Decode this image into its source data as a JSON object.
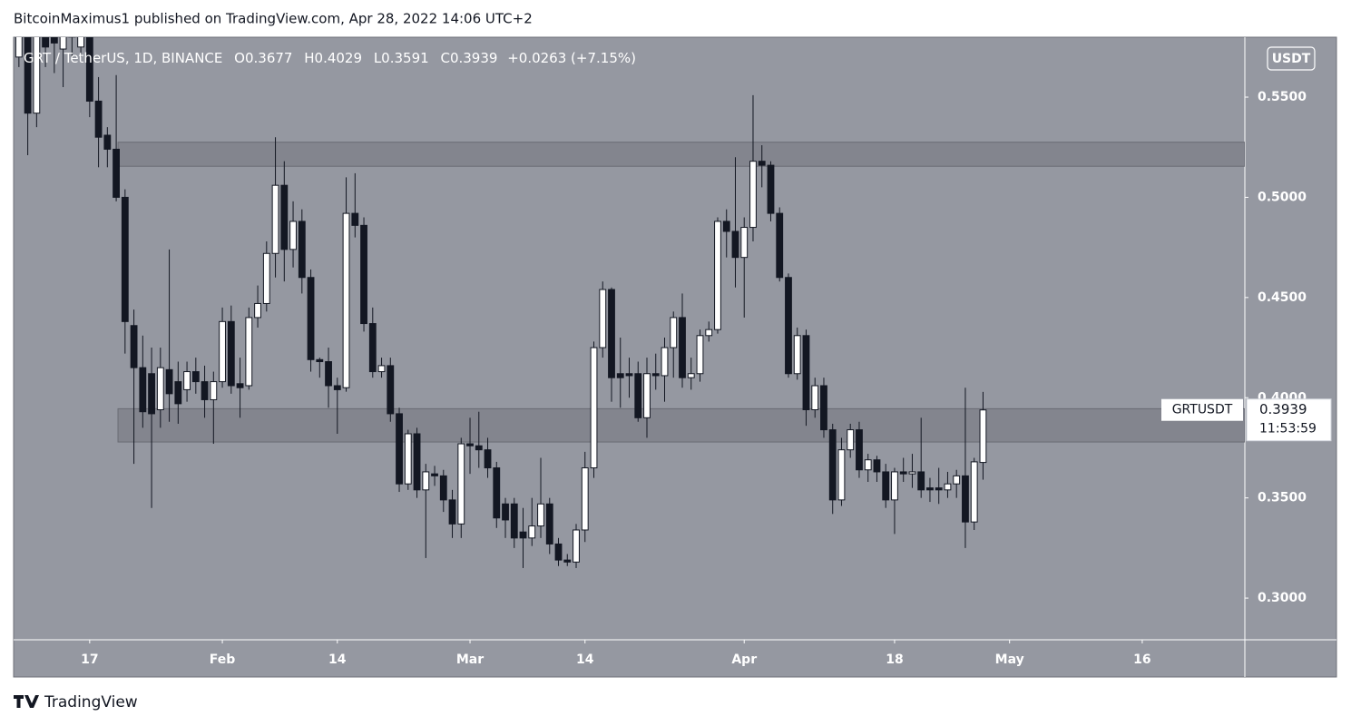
{
  "header": {
    "text": "BitcoinMaximus1 published on TradingView.com, Apr 28, 2022 14:06 UTC+2"
  },
  "footer": {
    "brand": "TradingView"
  },
  "chart_data": {
    "type": "candlestick",
    "symbol": "GRT / TetherUS, 1D, BINANCE",
    "ohlc_legend": {
      "o_label": "O",
      "open": 0.3677,
      "h_label": "H",
      "high": 0.4029,
      "l_label": "L",
      "low": 0.3591,
      "c_label": "C",
      "close": 0.3939,
      "change": "+0.0263 (+7.15%)"
    },
    "axis_unit": "USDT",
    "price_tag": {
      "name": "GRTUSDT",
      "value": 0.3939,
      "countdown": "11:53:59"
    },
    "up_color": "#ffffff",
    "down_color": "#131722",
    "wick_color": "#131722",
    "background": "#9598a1",
    "zone_color": "#7d7f88",
    "zones": [
      {
        "start": 20.2,
        "from": 0.5155,
        "to": 0.5275
      },
      {
        "start": 20.2,
        "from": 0.3779,
        "to": 0.3945
      }
    ],
    "xlim": [
      8.4,
      147.6
    ],
    "xticks": [
      {
        "value": 17,
        "label": "17"
      },
      {
        "value": 32,
        "label": "Feb"
      },
      {
        "value": 45,
        "label": "14"
      },
      {
        "value": 60,
        "label": "Mar"
      },
      {
        "value": 73,
        "label": "14"
      },
      {
        "value": 91,
        "label": "Apr"
      },
      {
        "value": 108,
        "label": "18"
      },
      {
        "value": 121,
        "label": "May"
      },
      {
        "value": 136,
        "label": "16"
      }
    ],
    "ylim": [
      0.2792,
      0.5799
    ],
    "yticks": [
      {
        "value": 0.3,
        "label": "0.3000"
      },
      {
        "value": 0.35,
        "label": "0.3500"
      },
      {
        "value": 0.4,
        "label": "0.4000"
      },
      {
        "value": 0.45,
        "label": "0.4500"
      },
      {
        "value": 0.5,
        "label": "0.5000"
      },
      {
        "value": 0.55,
        "label": "0.5500"
      }
    ],
    "x": [
      9,
      10,
      11,
      12,
      13,
      14,
      15,
      16,
      17,
      18,
      19,
      20,
      21,
      22,
      23,
      24,
      25,
      26,
      27,
      28,
      29,
      30,
      31,
      32,
      33,
      34,
      35,
      36,
      37,
      38,
      39,
      40,
      41,
      42,
      43,
      44,
      45,
      46,
      47,
      48,
      49,
      50,
      51,
      52,
      53,
      54,
      55,
      56,
      57,
      58,
      59,
      60,
      61,
      62,
      63,
      64,
      65,
      66,
      67,
      68,
      69,
      70,
      71,
      72,
      73,
      74,
      75,
      76,
      77,
      78,
      79,
      80,
      81,
      82,
      83,
      84,
      85,
      86,
      87,
      88,
      89,
      90,
      91,
      92,
      93,
      94,
      95,
      96,
      97,
      98,
      99,
      100,
      101,
      102,
      103,
      104,
      105,
      106,
      107,
      108,
      109,
      110,
      111,
      112,
      113,
      114,
      115,
      116,
      117,
      118
    ],
    "open": [
      0.57,
      0.585,
      0.542,
      0.59,
      0.585,
      0.574,
      0.59,
      0.575,
      0.585,
      0.548,
      0.531,
      0.524,
      0.5,
      0.436,
      0.415,
      0.412,
      0.394,
      0.414,
      0.408,
      0.404,
      0.413,
      0.408,
      0.399,
      0.408,
      0.438,
      0.407,
      0.406,
      0.44,
      0.447,
      0.472,
      0.506,
      0.474,
      0.488,
      0.46,
      0.419,
      0.418,
      0.406,
      0.405,
      0.492,
      0.486,
      0.437,
      0.413,
      0.416,
      0.392,
      0.357,
      0.382,
      0.354,
      0.362,
      0.361,
      0.349,
      0.337,
      0.377,
      0.376,
      0.374,
      0.365,
      0.347,
      0.347,
      0.333,
      0.33,
      0.336,
      0.347,
      0.327,
      0.319,
      0.318,
      0.334,
      0.365,
      0.425,
      0.454,
      0.412,
      0.412,
      0.412,
      0.39,
      0.412,
      0.411,
      0.425,
      0.44,
      0.41,
      0.412,
      0.431,
      0.434,
      0.488,
      0.483,
      0.47,
      0.485,
      0.518,
      0.516,
      0.492,
      0.46,
      0.412,
      0.431,
      0.394,
      0.406,
      0.384,
      0.349,
      0.374,
      0.384,
      0.364,
      0.369,
      0.363,
      0.349,
      0.363,
      0.362,
      0.363,
      0.355,
      0.355,
      0.354,
      0.357,
      0.361,
      0.338,
      0.3677
    ],
    "high": [
      0.6,
      0.6,
      0.59,
      0.6,
      0.595,
      0.6,
      0.6,
      0.6,
      0.595,
      0.56,
      0.535,
      0.561,
      0.504,
      0.444,
      0.431,
      0.425,
      0.425,
      0.474,
      0.418,
      0.418,
      0.42,
      0.416,
      0.413,
      0.445,
      0.446,
      0.42,
      0.445,
      0.456,
      0.478,
      0.53,
      0.518,
      0.498,
      0.494,
      0.464,
      0.42,
      0.425,
      0.41,
      0.51,
      0.512,
      0.49,
      0.445,
      0.42,
      0.42,
      0.395,
      0.384,
      0.385,
      0.367,
      0.366,
      0.364,
      0.354,
      0.38,
      0.39,
      0.393,
      0.38,
      0.368,
      0.35,
      0.35,
      0.345,
      0.35,
      0.37,
      0.35,
      0.33,
      0.322,
      0.337,
      0.373,
      0.428,
      0.458,
      0.455,
      0.43,
      0.42,
      0.418,
      0.42,
      0.422,
      0.43,
      0.443,
      0.452,
      0.42,
      0.434,
      0.438,
      0.49,
      0.494,
      0.52,
      0.49,
      0.551,
      0.526,
      0.518,
      0.495,
      0.462,
      0.435,
      0.434,
      0.41,
      0.41,
      0.387,
      0.38,
      0.387,
      0.388,
      0.372,
      0.371,
      0.367,
      0.365,
      0.37,
      0.372,
      0.39,
      0.36,
      0.365,
      0.363,
      0.364,
      0.405,
      0.37,
      0.4029
    ],
    "low": [
      0.565,
      0.521,
      0.535,
      0.565,
      0.562,
      0.555,
      0.57,
      0.57,
      0.54,
      0.515,
      0.515,
      0.498,
      0.422,
      0.367,
      0.385,
      0.345,
      0.385,
      0.388,
      0.387,
      0.398,
      0.402,
      0.39,
      0.377,
      0.405,
      0.402,
      0.39,
      0.404,
      0.435,
      0.443,
      0.46,
      0.458,
      0.465,
      0.452,
      0.413,
      0.41,
      0.395,
      0.382,
      0.403,
      0.48,
      0.433,
      0.41,
      0.41,
      0.388,
      0.353,
      0.354,
      0.35,
      0.32,
      0.356,
      0.343,
      0.33,
      0.33,
      0.362,
      0.365,
      0.36,
      0.335,
      0.33,
      0.325,
      0.315,
      0.326,
      0.33,
      0.322,
      0.316,
      0.316,
      0.315,
      0.328,
      0.36,
      0.42,
      0.398,
      0.395,
      0.4,
      0.388,
      0.38,
      0.404,
      0.398,
      0.41,
      0.405,
      0.404,
      0.408,
      0.428,
      0.432,
      0.47,
      0.455,
      0.44,
      0.478,
      0.505,
      0.488,
      0.458,
      0.41,
      0.409,
      0.386,
      0.39,
      0.38,
      0.342,
      0.346,
      0.37,
      0.36,
      0.358,
      0.358,
      0.345,
      0.332,
      0.358,
      0.355,
      0.35,
      0.348,
      0.347,
      0.35,
      0.35,
      0.325,
      0.334,
      0.3591
    ],
    "close": [
      0.59,
      0.542,
      0.585,
      0.575,
      0.577,
      0.59,
      0.58,
      0.59,
      0.548,
      0.53,
      0.524,
      0.5,
      0.438,
      0.415,
      0.393,
      0.392,
      0.415,
      0.402,
      0.397,
      0.413,
      0.408,
      0.399,
      0.408,
      0.438,
      0.406,
      0.405,
      0.44,
      0.447,
      0.472,
      0.506,
      0.474,
      0.488,
      0.46,
      0.419,
      0.418,
      0.406,
      0.404,
      0.492,
      0.486,
      0.437,
      0.413,
      0.416,
      0.392,
      0.357,
      0.382,
      0.354,
      0.363,
      0.361,
      0.349,
      0.337,
      0.377,
      0.376,
      0.374,
      0.365,
      0.34,
      0.339,
      0.33,
      0.33,
      0.336,
      0.347,
      0.327,
      0.319,
      0.318,
      0.334,
      0.365,
      0.425,
      0.454,
      0.41,
      0.41,
      0.411,
      0.39,
      0.412,
      0.411,
      0.425,
      0.44,
      0.41,
      0.412,
      0.431,
      0.434,
      0.488,
      0.483,
      0.47,
      0.485,
      0.518,
      0.516,
      0.492,
      0.46,
      0.412,
      0.431,
      0.394,
      0.406,
      0.384,
      0.349,
      0.374,
      0.384,
      0.364,
      0.369,
      0.363,
      0.349,
      0.363,
      0.362,
      0.363,
      0.354,
      0.354,
      0.354,
      0.357,
      0.361,
      0.338,
      0.368,
      0.3939
    ]
  }
}
